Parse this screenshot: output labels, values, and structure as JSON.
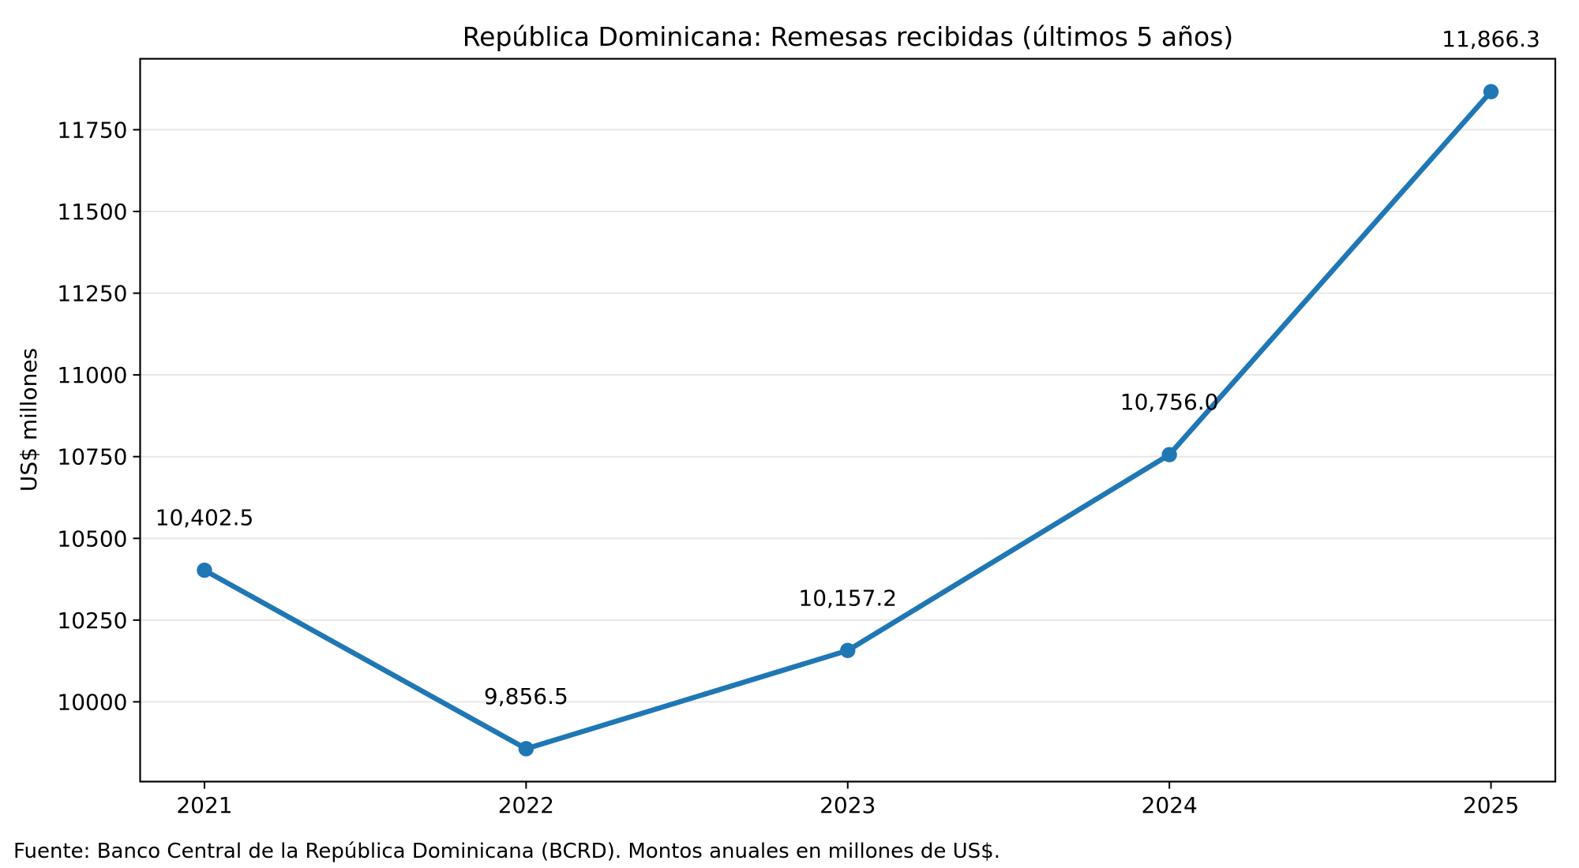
{
  "chart_data": {
    "type": "line",
    "title": "República Dominicana: Remesas recibidas (últimos 5 años)",
    "xlabel": "",
    "ylabel": "US$ millones",
    "categories": [
      "2021",
      "2022",
      "2023",
      "2024",
      "2025"
    ],
    "series": [
      {
        "name": "Remesas recibidas",
        "values": [
          10402.5,
          9856.5,
          10157.2,
          10756.0,
          11866.3
        ]
      }
    ],
    "point_labels": [
      "10,402.5",
      "9,856.5",
      "10,157.2",
      "10,756.0",
      "11,866.3"
    ],
    "yticks": [
      10000,
      10250,
      10500,
      10750,
      11000,
      11250,
      11500,
      11750
    ],
    "ylim": [
      9756,
      11967
    ],
    "grid": "horizontal-only",
    "legend_position": "none",
    "line_color": "#1f77b4",
    "marker": "circle",
    "source_note": "Fuente: Banco Central de la República Dominicana (BCRD). Montos anuales en millones de US$."
  }
}
